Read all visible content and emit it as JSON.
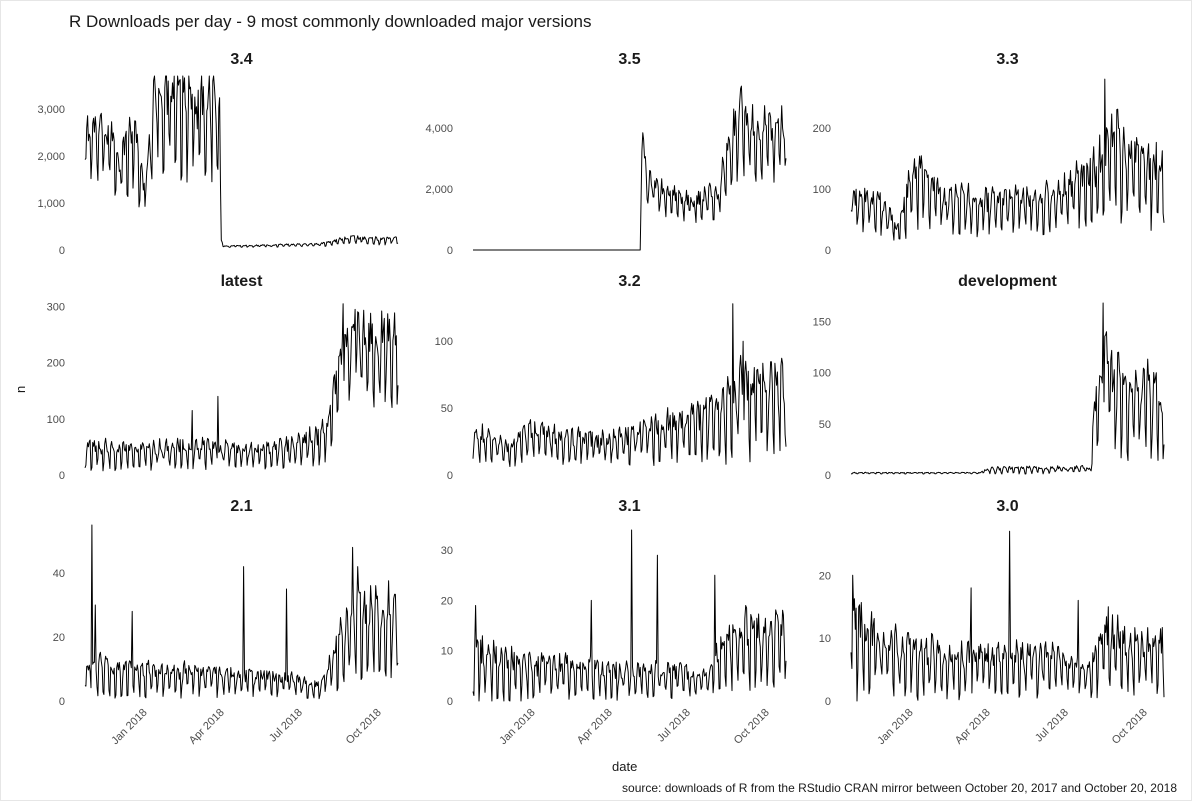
{
  "title": "R Downloads per day - 9 most commonly downloaded major versions",
  "caption": "source: downloads of R from the RStudio CRAN mirror between October 20, 2017 and October 20, 2018",
  "chart_data": {
    "type": "line",
    "xlabel": "date",
    "ylabel": "n",
    "x_range": [
      "2017-10-20",
      "2018-10-20"
    ],
    "x_ticks": [
      "Jan 2018",
      "Apr 2018",
      "Jul 2018",
      "Oct 2018"
    ],
    "grid": false,
    "facets": [
      {
        "name": "3.4",
        "ylim": [
          0,
          3700
        ],
        "yticks": [
          0,
          1000,
          2000,
          3000
        ],
        "ytick_labels": [
          "0",
          "1,000",
          "2,000",
          "3,000"
        ],
        "knots": [
          [
            0,
            2300
          ],
          [
            20,
            2500
          ],
          [
            40,
            1800
          ],
          [
            58,
            2400
          ],
          [
            68,
            1200
          ],
          [
            74,
            2000
          ],
          [
            84,
            3300
          ],
          [
            100,
            3000
          ],
          [
            120,
            2900
          ],
          [
            136,
            2800
          ],
          [
            150,
            3100
          ],
          [
            157,
            2400
          ],
          [
            159,
            200
          ],
          [
            161,
            80
          ],
          [
            200,
            90
          ],
          [
            240,
            110
          ],
          [
            275,
            120
          ],
          [
            295,
            200
          ],
          [
            312,
            250
          ],
          [
            320,
            220
          ]
        ],
        "amp": [
          [
            0,
            0.22
          ],
          [
            60,
            0.3
          ],
          [
            75,
            0.3
          ],
          [
            157,
            0.32
          ],
          [
            159,
            0.25
          ],
          [
            161,
            0.2
          ],
          [
            320,
            0.3
          ]
        ]
      },
      {
        "name": "3.5",
        "ylim": [
          0,
          5700
        ],
        "yticks": [
          0,
          2000,
          4000
        ],
        "ytick_labels": [
          "0",
          "2,000",
          "4,000"
        ],
        "knots": [
          [
            0,
            0
          ],
          [
            195,
            0
          ],
          [
            197,
            3600
          ],
          [
            205,
            2100
          ],
          [
            230,
            1700
          ],
          [
            260,
            1500
          ],
          [
            285,
            1800
          ],
          [
            300,
            3200
          ],
          [
            312,
            4500
          ],
          [
            320,
            3800
          ]
        ],
        "amp": [
          [
            0,
            0
          ],
          [
            195,
            0
          ],
          [
            197,
            0.15
          ],
          [
            205,
            0.22
          ],
          [
            260,
            0.25
          ],
          [
            300,
            0.28
          ],
          [
            320,
            0.25
          ]
        ]
      },
      {
        "name": "3.3",
        "ylim": [
          0,
          285
        ],
        "yticks": [
          0,
          100,
          200
        ],
        "ytick_labels": [
          "0",
          "100",
          "200"
        ],
        "knots": [
          [
            0,
            80
          ],
          [
            35,
            70
          ],
          [
            55,
            30
          ],
          [
            68,
            90
          ],
          [
            85,
            120
          ],
          [
            105,
            80
          ],
          [
            160,
            70
          ],
          [
            200,
            75
          ],
          [
            240,
            80
          ],
          [
            260,
            95
          ],
          [
            280,
            110
          ],
          [
            305,
            150
          ],
          [
            312,
            170
          ],
          [
            320,
            130
          ]
        ],
        "amp": [
          [
            0,
            0.35
          ],
          [
            55,
            0.5
          ],
          [
            85,
            0.4
          ],
          [
            320,
            0.45
          ]
        ],
        "spikes": [
          [
            296,
            280
          ],
          [
            310,
            230
          ]
        ]
      },
      {
        "name": "latest",
        "ylim": [
          0,
          310
        ],
        "yticks": [
          0,
          100,
          200,
          300
        ],
        "ytick_labels": [
          "0",
          "100",
          "200",
          "300"
        ],
        "knots": [
          [
            0,
            45
          ],
          [
            60,
            40
          ],
          [
            120,
            45
          ],
          [
            180,
            40
          ],
          [
            230,
            45
          ],
          [
            270,
            60
          ],
          [
            283,
            80
          ],
          [
            292,
            140
          ],
          [
            300,
            200
          ],
          [
            312,
            230
          ],
          [
            320,
            220
          ]
        ],
        "amp": [
          [
            0,
            0.5
          ],
          [
            280,
            0.45
          ],
          [
            300,
            0.3
          ],
          [
            320,
            0.3
          ]
        ],
        "spikes": [
          [
            125,
            115
          ],
          [
            155,
            140
          ],
          [
            301,
            305
          ],
          [
            315,
            295
          ]
        ]
      },
      {
        "name": "3.2",
        "ylim": [
          0,
          130
        ],
        "yticks": [
          0,
          50,
          100
        ],
        "ytick_labels": [
          "0",
          "50",
          "100"
        ],
        "knots": [
          [
            0,
            30
          ],
          [
            40,
            18
          ],
          [
            70,
            30
          ],
          [
            110,
            25
          ],
          [
            160,
            22
          ],
          [
            200,
            30
          ],
          [
            240,
            35
          ],
          [
            270,
            40
          ],
          [
            290,
            45
          ],
          [
            305,
            55
          ],
          [
            320,
            60
          ]
        ],
        "amp": [
          [
            0,
            0.4
          ],
          [
            320,
            0.5
          ]
        ],
        "spikes": [
          [
            303,
            128
          ],
          [
            315,
            100
          ]
        ]
      },
      {
        "name": "development",
        "ylim": [
          0,
          170
        ],
        "yticks": [
          0,
          50,
          100,
          150
        ],
        "ytick_labels": [
          "0",
          "50",
          "100",
          "150"
        ],
        "knots": [
          [
            0,
            2
          ],
          [
            150,
            2
          ],
          [
            160,
            5
          ],
          [
            200,
            6
          ],
          [
            240,
            6
          ],
          [
            272,
            6
          ],
          [
            279,
            5
          ],
          [
            282,
            40
          ],
          [
            290,
            90
          ],
          [
            297,
            120
          ],
          [
            305,
            80
          ],
          [
            320,
            70
          ]
        ],
        "amp": [
          [
            0,
            0.3
          ],
          [
            150,
            0.3
          ],
          [
            160,
            0.5
          ],
          [
            278,
            0.5
          ],
          [
            282,
            0.4
          ],
          [
            320,
            0.55
          ]
        ],
        "spikes": [
          [
            294,
            168
          ],
          [
            312,
            120
          ]
        ]
      },
      {
        "name": "2.1",
        "ylim": [
          0,
          55
        ],
        "yticks": [
          0,
          20,
          40
        ],
        "ytick_labels": [
          "0",
          "20",
          "40"
        ],
        "knots": [
          [
            0,
            10
          ],
          [
            60,
            8
          ],
          [
            120,
            8
          ],
          [
            180,
            7
          ],
          [
            240,
            6
          ],
          [
            275,
            4
          ],
          [
            285,
            10
          ],
          [
            300,
            18
          ],
          [
            312,
            22
          ],
          [
            320,
            25
          ]
        ],
        "amp": [
          [
            0,
            0.55
          ],
          [
            275,
            0.5
          ],
          [
            320,
            0.45
          ]
        ],
        "spikes": [
          [
            8,
            55
          ],
          [
            12,
            30
          ],
          [
            55,
            28
          ],
          [
            185,
            42
          ],
          [
            235,
            35
          ],
          [
            312,
            48
          ],
          [
            318,
            42
          ]
        ]
      },
      {
        "name": "3.1",
        "ylim": [
          0,
          35
        ],
        "yticks": [
          0,
          10,
          20,
          30
        ],
        "ytick_labels": [
          "0",
          "10",
          "20",
          "30"
        ],
        "knots": [
          [
            0,
            8
          ],
          [
            60,
            6
          ],
          [
            120,
            6
          ],
          [
            180,
            5
          ],
          [
            240,
            5
          ],
          [
            275,
            4
          ],
          [
            285,
            8
          ],
          [
            300,
            11
          ],
          [
            320,
            12
          ]
        ],
        "amp": [
          [
            0,
            0.65
          ],
          [
            320,
            0.5
          ]
        ],
        "spikes": [
          [
            3,
            19
          ],
          [
            138,
            20
          ],
          [
            185,
            34
          ],
          [
            215,
            29
          ],
          [
            282,
            25
          ],
          [
            318,
            19
          ]
        ]
      },
      {
        "name": "3.0",
        "ylim": [
          0,
          28
        ],
        "yticks": [
          0,
          10,
          20
        ],
        "ytick_labels": [
          "0",
          "10",
          "20"
        ],
        "knots": [
          [
            0,
            12
          ],
          [
            20,
            9
          ],
          [
            60,
            7
          ],
          [
            120,
            6
          ],
          [
            180,
            6
          ],
          [
            240,
            6
          ],
          [
            275,
            4
          ],
          [
            290,
            7
          ],
          [
            300,
            9
          ],
          [
            320,
            8
          ]
        ],
        "amp": [
          [
            0,
            0.6
          ],
          [
            320,
            0.55
          ]
        ],
        "spikes": [
          [
            2,
            20
          ],
          [
            140,
            18
          ],
          [
            185,
            27
          ],
          [
            265,
            16
          ],
          [
            300,
            15
          ]
        ]
      }
    ]
  }
}
